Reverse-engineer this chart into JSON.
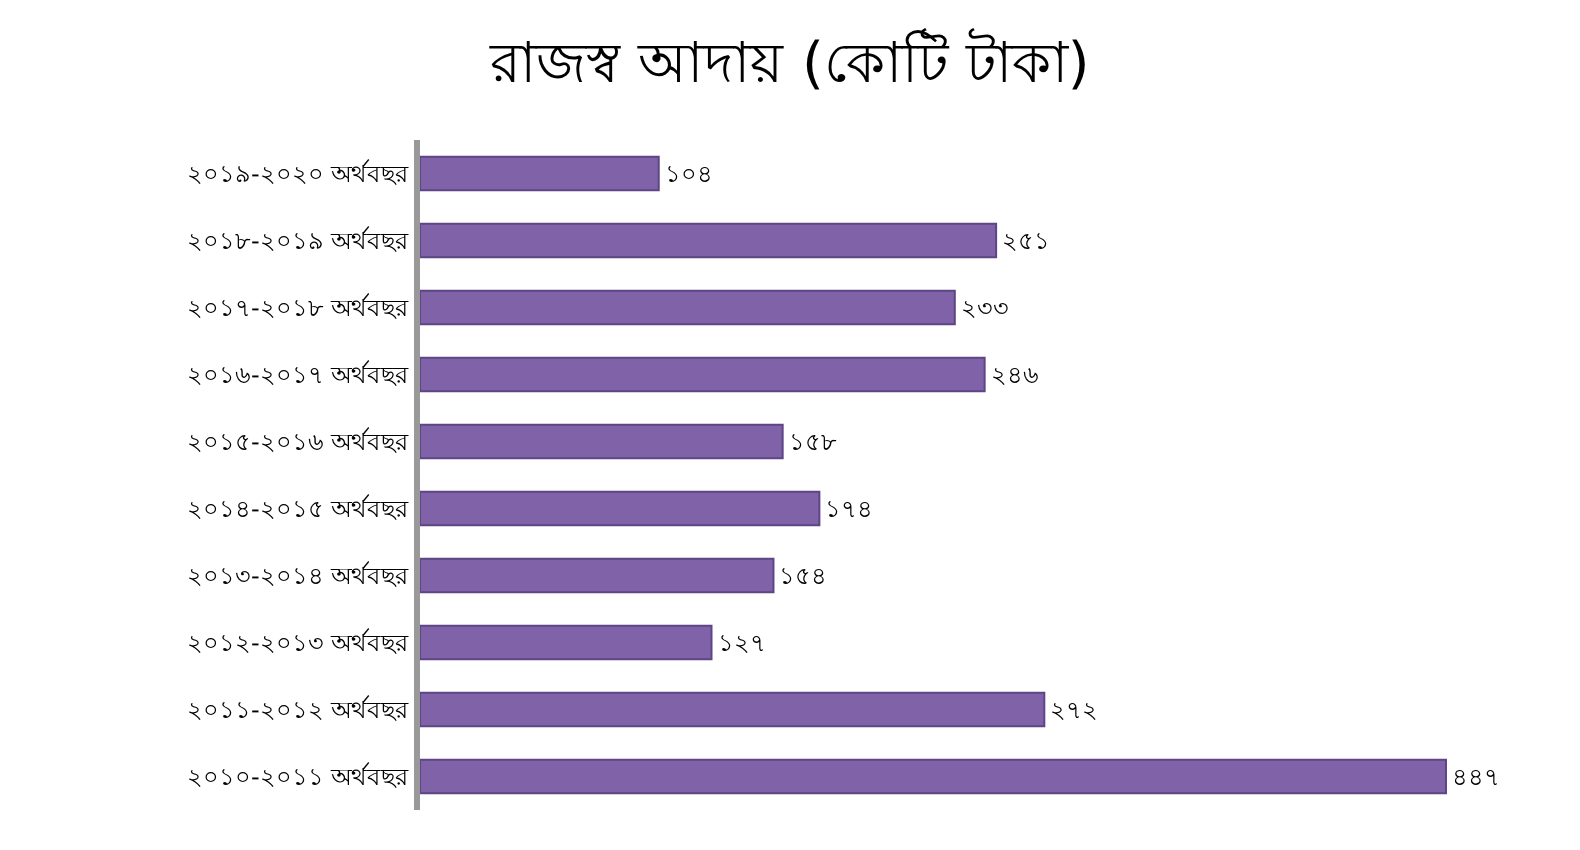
{
  "chart_data": {
    "type": "bar",
    "orientation": "horizontal",
    "title": "রাজস্ব আদায় (কোটি টাকা)",
    "categories": [
      "২০১৯-২০২০ অর্থবছর",
      "২০১৮-২০১৯ অর্থবছর",
      "২০১৭-২০১৮ অর্থবছর",
      "২০১৬-২০১৭ অর্থবছর",
      "২০১৫-২০১৬ অর্থবছর",
      "২০১৪-২০১৫ অর্থবছর",
      "২০১৩-২০১৪ অর্থবছর",
      "২০১২-২০১৩ অর্থবছর",
      "২০১১-২০১২ অর্থবছর",
      "২০১০-২০১১ অর্থবছর"
    ],
    "values": [
      104,
      251,
      233,
      246,
      158,
      174,
      154,
      127,
      272,
      447
    ],
    "value_labels": [
      "১০৪",
      "২৫১",
      "২৩৩",
      "২৪৬",
      "১৫৮",
      "১৭৪",
      "১৫৪",
      "১২৭",
      "২৭২",
      "৪৪৭"
    ],
    "color": "#7f62a8"
  }
}
